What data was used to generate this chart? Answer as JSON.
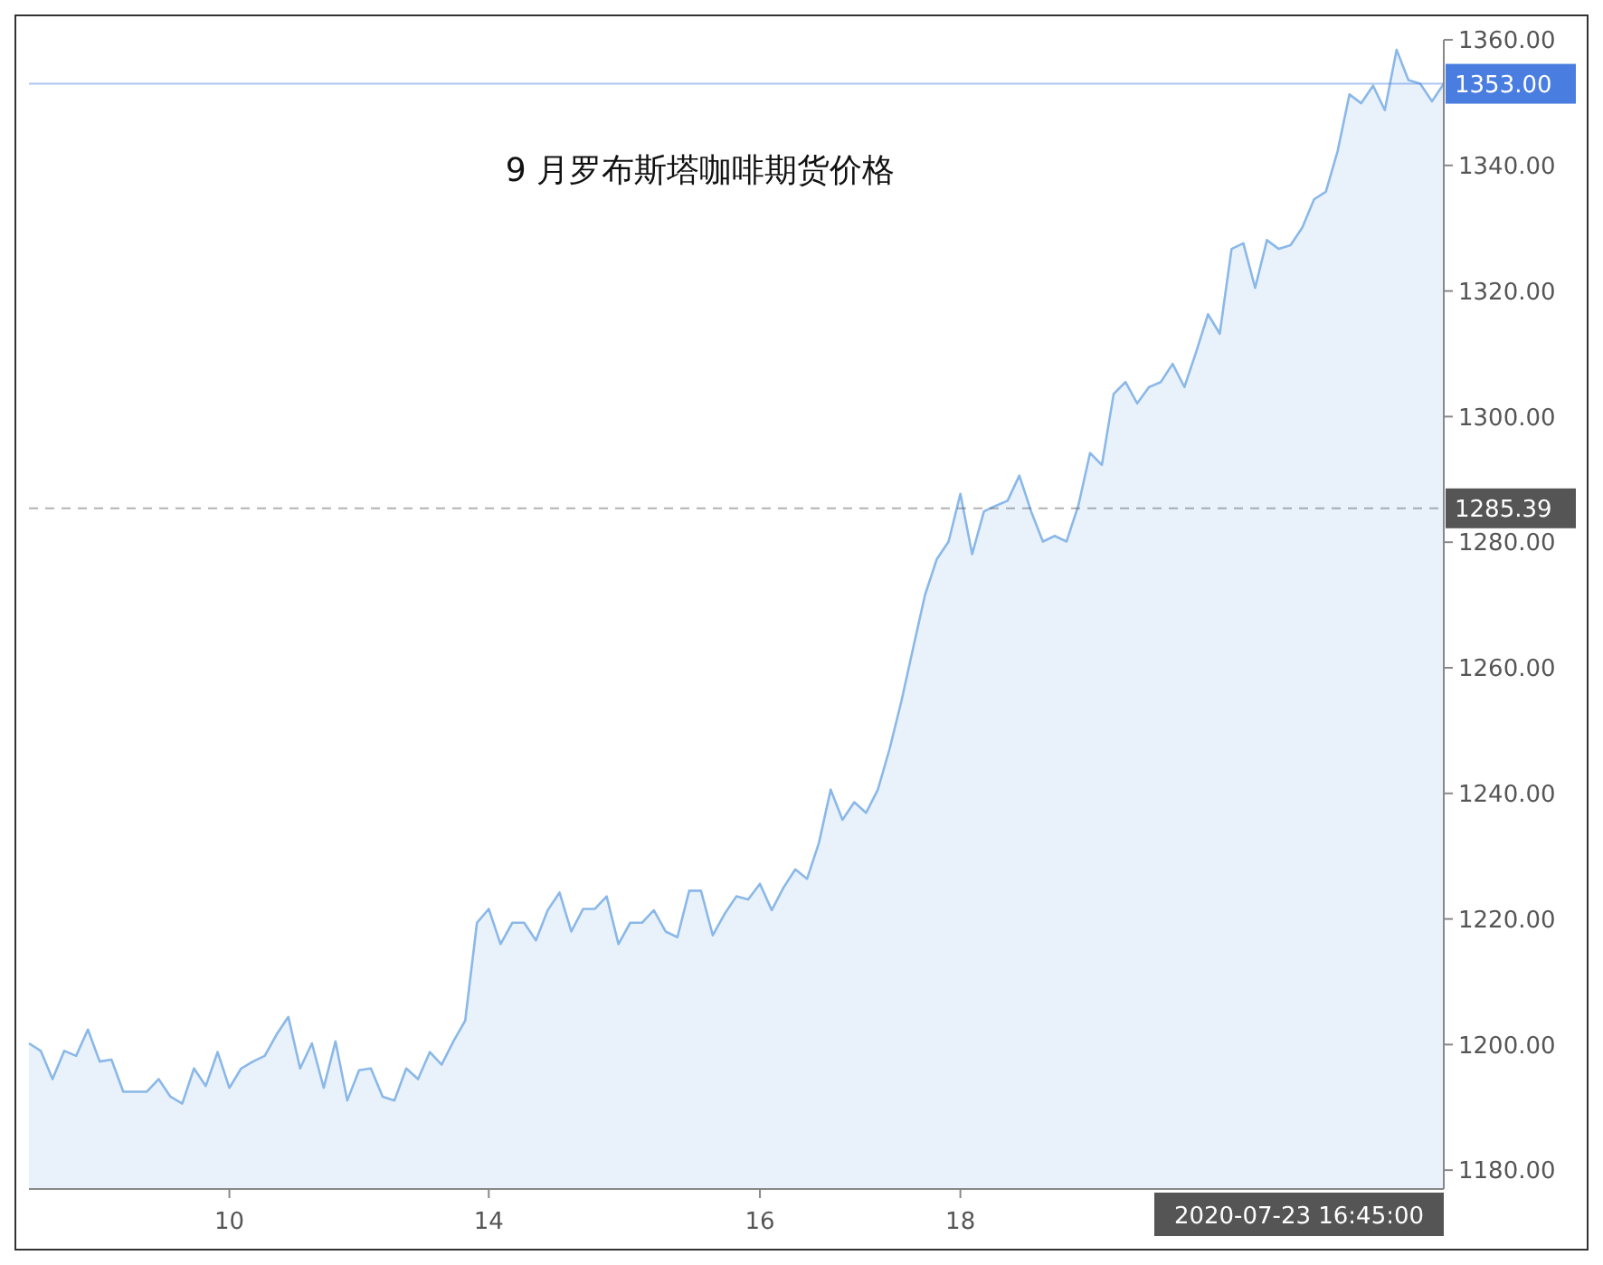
{
  "chart_data": {
    "type": "area",
    "title": "9 月罗布斯塔咖啡期货价格",
    "categories": [
      null,
      null,
      null,
      null,
      null,
      null,
      null,
      null,
      null,
      null,
      null,
      null,
      null,
      null,
      null,
      null,
      null,
      "10",
      null,
      null,
      null,
      null,
      null,
      null,
      null,
      null,
      null,
      null,
      null,
      null,
      null,
      null,
      null,
      null,
      null,
      null,
      null,
      null,
      null,
      "14",
      null,
      null,
      null,
      null,
      null,
      null,
      null,
      null,
      null,
      null,
      null,
      null,
      null,
      null,
      null,
      null,
      null,
      null,
      null,
      null,
      null,
      null,
      "16",
      null,
      null,
      null,
      null,
      null,
      null,
      null,
      null,
      null,
      null,
      null,
      null,
      null,
      null,
      null,
      null,
      "18",
      null,
      null,
      null,
      null,
      null,
      null,
      null,
      null,
      null,
      null,
      null,
      null,
      null,
      null,
      null,
      null,
      null,
      null,
      null,
      null,
      null,
      null,
      null,
      null,
      null,
      null,
      null,
      null,
      null,
      null,
      null,
      null,
      null,
      null,
      null,
      null,
      null,
      null,
      null,
      null,
      null
    ],
    "series": [
      {
        "color": "#8ab8e8",
        "values": [
          1200.2,
          1199.0,
          1194.5,
          1199.0,
          1198.2,
          1202.4,
          1197.3,
          1197.6,
          1192.5,
          1192.5,
          1192.5,
          1194.5,
          1191.7,
          1190.6,
          1196.2,
          1193.4,
          1198.8,
          1193.1,
          1196.2,
          1197.3,
          1198.2,
          1201.6,
          1204.4,
          1196.2,
          1200.2,
          1193.1,
          1200.5,
          1191.1,
          1195.9,
          1196.2,
          1191.7,
          1191.1,
          1196.2,
          1194.5,
          1198.8,
          1196.8,
          1200.5,
          1203.8,
          1219.4,
          1221.6,
          1216.0,
          1219.4,
          1219.4,
          1216.6,
          1221.4,
          1224.2,
          1218.0,
          1221.6,
          1221.6,
          1223.6,
          1216.0,
          1219.4,
          1219.4,
          1221.4,
          1218.0,
          1217.1,
          1224.5,
          1224.5,
          1217.4,
          1220.8,
          1223.6,
          1223.1,
          1225.6,
          1221.4,
          1225.0,
          1227.9,
          1226.4,
          1232.1,
          1240.6,
          1235.8,
          1238.6,
          1236.9,
          1240.6,
          1247.1,
          1254.7,
          1263.2,
          1271.6,
          1277.3,
          1280.1,
          1287.7,
          1278.1,
          1284.9,
          1285.8,
          1286.6,
          1290.6,
          1284.9,
          1280.1,
          1281.0,
          1280.1,
          1285.8,
          1294.2,
          1292.3,
          1303.6,
          1305.5,
          1302.1,
          1304.7,
          1305.5,
          1308.4,
          1304.7,
          1310.3,
          1316.3,
          1313.2,
          1326.7,
          1327.6,
          1320.5,
          1328.1,
          1326.7,
          1327.3,
          1330.1,
          1334.6,
          1335.8,
          1342.3,
          1351.3,
          1349.9,
          1352.7,
          1348.8,
          1358.4,
          1353.6,
          1353.0,
          1350.2,
          1353.0
        ]
      }
    ],
    "annotations": [
      "2020-07-23 16:45:00"
    ],
    "ylim": [
      1177,
      1360
    ],
    "yticks": [
      {
        "value": 1180,
        "label": "1180.00"
      },
      {
        "value": 1200,
        "label": "1200.00"
      },
      {
        "value": 1220,
        "label": "1220.00"
      },
      {
        "value": 1240,
        "label": "1240.00"
      },
      {
        "value": 1260,
        "label": "1260.00"
      },
      {
        "value": 1280,
        "label": "1280.00"
      },
      {
        "value": 1300,
        "label": "1300.00"
      },
      {
        "value": 1320,
        "label": "1320.00"
      },
      {
        "value": 1340,
        "label": "1340.00"
      },
      {
        "value": 1360,
        "label": "1360.00"
      }
    ],
    "ref_lines": [
      {
        "axis": "y",
        "value": 1353,
        "label": "1353.00",
        "color": "#4a7de0",
        "line_style": "solid"
      },
      {
        "axis": "y",
        "value": 1285.39,
        "label": "1285.39",
        "color": "#555555",
        "line_style": "dashed"
      }
    ]
  }
}
